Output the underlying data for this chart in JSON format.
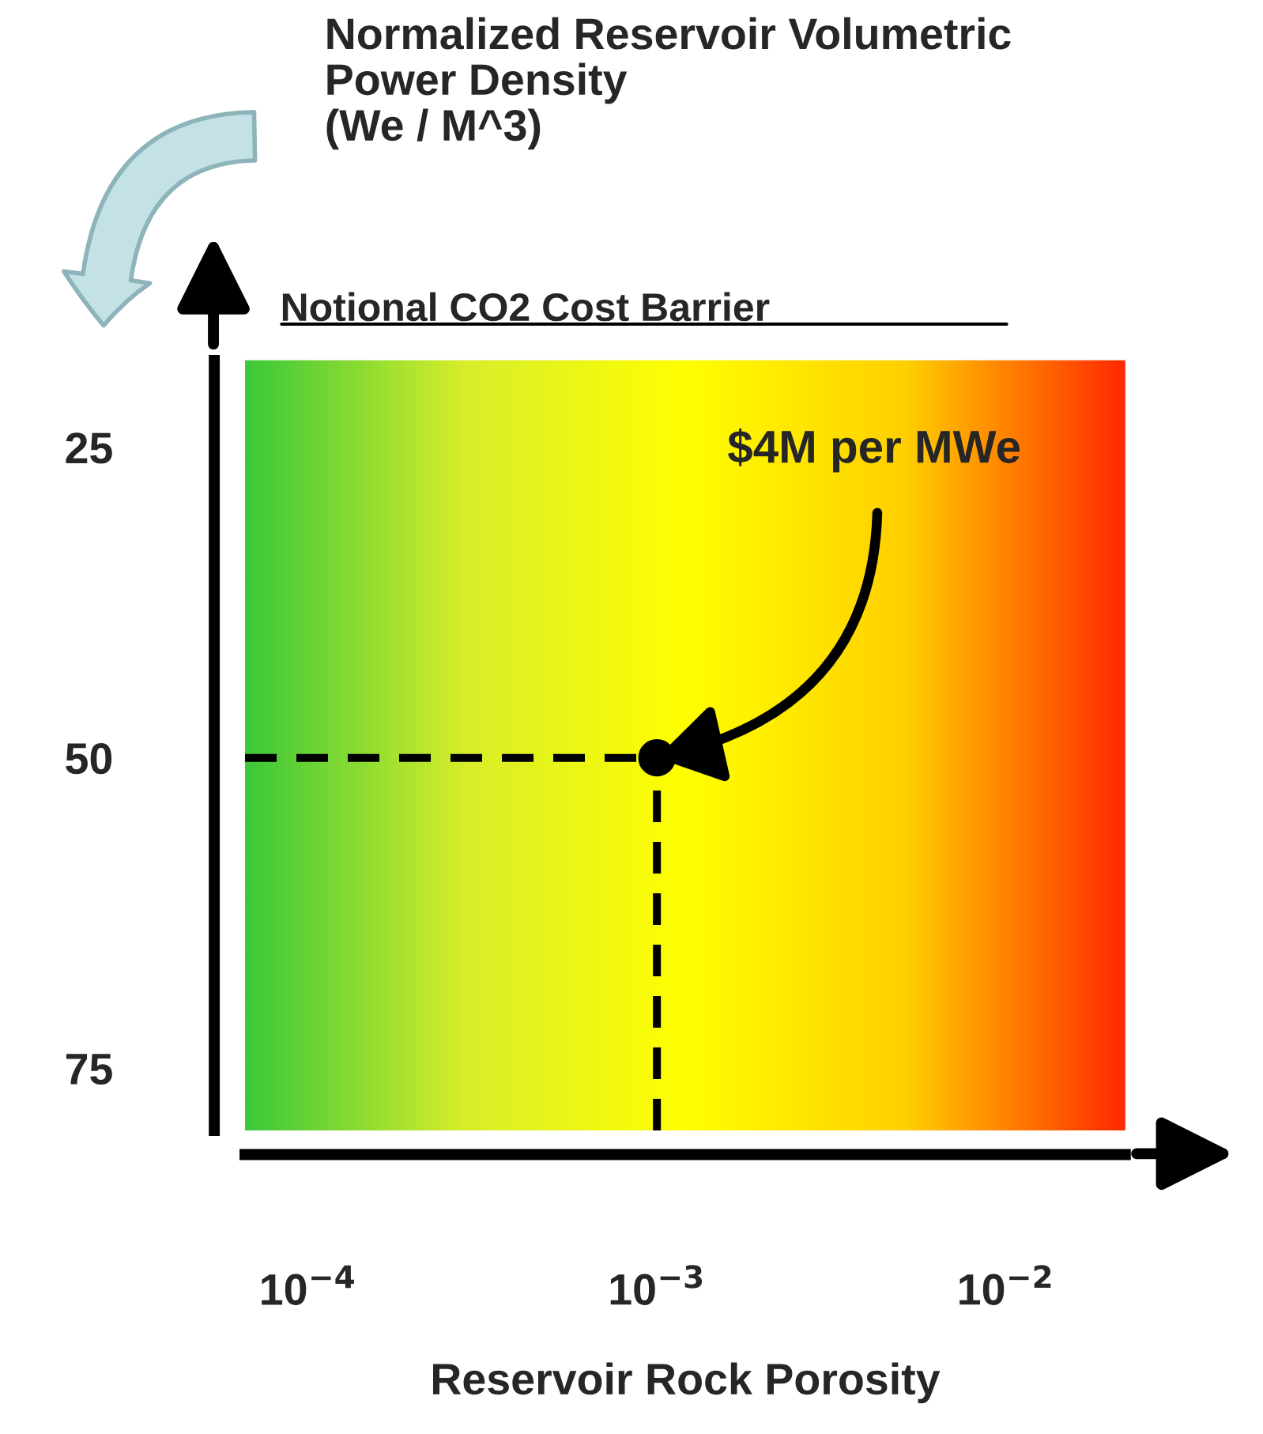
{
  "chart_data": {
    "type": "scatter",
    "title": "Notional CO2 Cost Barrier",
    "ylabel": "Normalized Reservoir Volumetric\nPower Density\n(We / M^3)",
    "xlabel": "Reservoir Rock Porosity",
    "x": [
      0.001
    ],
    "values": [
      50
    ],
    "color": "#000000",
    "marker": "circle",
    "log": "x",
    "xlim": [
      6.6e-05,
      0.022
    ],
    "xticks": [
      {
        "value": 0.0001,
        "label": "10$^{−4}$"
      },
      {
        "value": 0.001,
        "label": "10$^{−3}$"
      },
      {
        "value": 0.01,
        "label": "10$^{−2}$"
      }
    ],
    "ylim": [
      80,
      18
    ],
    "yticks": [
      25,
      50,
      75
    ],
    "ref_lines": [
      {
        "axis": "y",
        "value": 50,
        "line_style": "dashed",
        "color": "#000000"
      },
      {
        "axis": "x",
        "value": 0.001,
        "line_style": "dashed",
        "color": "#000000"
      }
    ],
    "annotations": [
      {
        "text": "$4M per MWe",
        "x": 0.001,
        "y": 50
      }
    ],
    "grid": false,
    "legend": false
  }
}
